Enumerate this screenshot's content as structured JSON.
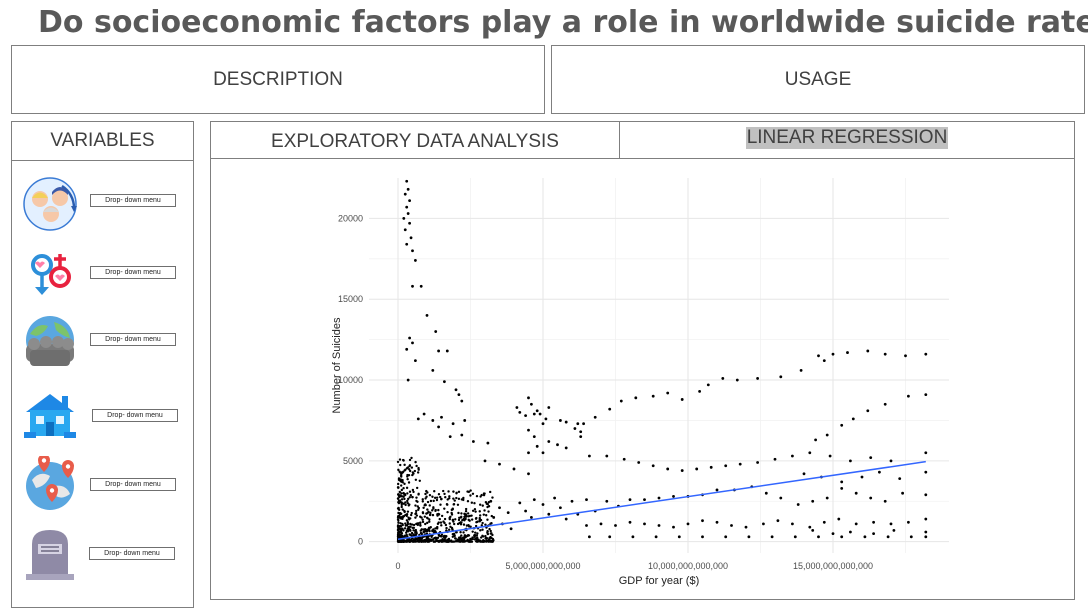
{
  "page": {
    "title": "Do socioeconomic factors play a role in worldwide suicide rates?"
  },
  "top_tabs": {
    "description": "DESCRIPTION",
    "usage": "USAGE"
  },
  "variables": {
    "header": "VARIABLES",
    "items": [
      {
        "icon": "age-groups-icon",
        "dropdown": "Drop- down menu"
      },
      {
        "icon": "gender-symbols-icon",
        "dropdown": "Drop- down menu"
      },
      {
        "icon": "world-population-icon",
        "dropdown": "Drop- down menu"
      },
      {
        "icon": "house-icon",
        "dropdown": "Drop- down menu"
      },
      {
        "icon": "globe-location-pins-icon",
        "dropdown": "Drop- down menu"
      },
      {
        "icon": "tombstone-icon",
        "dropdown": "Drop- down menu"
      }
    ]
  },
  "analysis_tabs": {
    "eda": "EXPLORATORY DATA ANALYSIS",
    "linear_regression": "LINEAR REGRESSION",
    "active": "linear_regression"
  },
  "chart_data": {
    "type": "scatter",
    "title": "",
    "xlabel": "GDP for year ($)",
    "ylabel": "Number of Suicides",
    "xlim": [
      -1000000000000,
      19000000000000
    ],
    "ylim": [
      -700,
      22500
    ],
    "x_ticks": [
      0,
      5000000000000,
      10000000000000,
      15000000000000
    ],
    "x_tick_labels": [
      "0",
      "5,000,000,000,000",
      "10,000,000,000,000",
      "15,000,000,000,000"
    ],
    "y_ticks": [
      0,
      5000,
      10000,
      15000,
      20000
    ],
    "y_tick_labels": [
      "0",
      "5000",
      "10000",
      "15000",
      "20000"
    ],
    "grid": true,
    "point_color": "#000000",
    "regression_line": {
      "color": "#3366ff",
      "x": [
        0,
        18200000000000
      ],
      "y": [
        150,
        4950
      ]
    },
    "points": [
      [
        300000000000,
        22300
      ],
      [
        350000000000,
        21800
      ],
      [
        250000000000,
        21500
      ],
      [
        400000000000,
        21100
      ],
      [
        300000000000,
        20700
      ],
      [
        350000000000,
        20300
      ],
      [
        200000000000,
        20000
      ],
      [
        400000000000,
        19700
      ],
      [
        250000000000,
        19300
      ],
      [
        450000000000,
        18800
      ],
      [
        300000000000,
        18400
      ],
      [
        500000000000,
        18000
      ],
      [
        600000000000,
        17400
      ],
      [
        500000000000,
        15800
      ],
      [
        800000000000,
        15800
      ],
      [
        1000000000000,
        14000
      ],
      [
        1300000000000,
        13000
      ],
      [
        400000000000,
        12600
      ],
      [
        500000000000,
        12300
      ],
      [
        300000000000,
        11900
      ],
      [
        1400000000000,
        11800
      ],
      [
        1700000000000,
        11800
      ],
      [
        600000000000,
        11200
      ],
      [
        1200000000000,
        10600
      ],
      [
        350000000000,
        10000
      ],
      [
        1600000000000,
        9900
      ],
      [
        2000000000000,
        9400
      ],
      [
        2100000000000,
        9100
      ],
      [
        2200000000000,
        8700
      ],
      [
        1500000000000,
        7700
      ],
      [
        1200000000000,
        7500
      ],
      [
        900000000000,
        7900
      ],
      [
        700000000000,
        7600
      ],
      [
        2300000000000,
        7500
      ],
      [
        1900000000000,
        7300
      ],
      [
        1400000000000,
        7100
      ],
      [
        2200000000000,
        6600
      ],
      [
        2600000000000,
        6200
      ],
      [
        3100000000000,
        6100
      ],
      [
        1800000000000,
        6500
      ],
      [
        4100000000000,
        8300
      ],
      [
        4200000000000,
        8000
      ],
      [
        4400000000000,
        7800
      ],
      [
        4500000000000,
        8900
      ],
      [
        4600000000000,
        8500
      ],
      [
        4700000000000,
        7900
      ],
      [
        4800000000000,
        8100
      ],
      [
        4900000000000,
        7900
      ],
      [
        5100000000000,
        7600
      ],
      [
        5200000000000,
        8300
      ],
      [
        5000000000000,
        7300
      ],
      [
        5600000000000,
        7500
      ],
      [
        5800000000000,
        7400
      ],
      [
        6200000000000,
        7300
      ],
      [
        6100000000000,
        7000
      ],
      [
        6300000000000,
        6800
      ],
      [
        6300000000000,
        6500
      ],
      [
        4500000000000,
        6900
      ],
      [
        4700000000000,
        6500
      ],
      [
        5200000000000,
        6200
      ],
      [
        5500000000000,
        6000
      ],
      [
        5800000000000,
        5800
      ],
      [
        4800000000000,
        5900
      ],
      [
        5000000000000,
        5500
      ],
      [
        4500000000000,
        5500
      ],
      [
        6400000000000,
        7300
      ],
      [
        6800000000000,
        7700
      ],
      [
        7300000000000,
        8200
      ],
      [
        7700000000000,
        8700
      ],
      [
        8200000000000,
        8900
      ],
      [
        8800000000000,
        9000
      ],
      [
        9300000000000,
        9200
      ],
      [
        9800000000000,
        8800
      ],
      [
        10400000000000,
        9300
      ],
      [
        10700000000000,
        9700
      ],
      [
        11200000000000,
        10100
      ],
      [
        11700000000000,
        10000
      ],
      [
        12400000000000,
        10100
      ],
      [
        13200000000000,
        10200
      ],
      [
        13900000000000,
        10600
      ],
      [
        14500000000000,
        11500
      ],
      [
        14700000000000,
        11200
      ],
      [
        15000000000000,
        11600
      ],
      [
        15500000000000,
        11700
      ],
      [
        16200000000000,
        11800
      ],
      [
        16800000000000,
        11600
      ],
      [
        17500000000000,
        11500
      ],
      [
        18200000000000,
        11600
      ],
      [
        14400000000000,
        6300
      ],
      [
        14800000000000,
        6600
      ],
      [
        15300000000000,
        7200
      ],
      [
        15700000000000,
        7600
      ],
      [
        16200000000000,
        8100
      ],
      [
        16800000000000,
        8500
      ],
      [
        17600000000000,
        9000
      ],
      [
        18200000000000,
        9100
      ],
      [
        6600000000000,
        5300
      ],
      [
        7200000000000,
        5300
      ],
      [
        7800000000000,
        5100
      ],
      [
        8300000000000,
        4900
      ],
      [
        8800000000000,
        4700
      ],
      [
        9300000000000,
        4500
      ],
      [
        9800000000000,
        4400
      ],
      [
        10300000000000,
        4500
      ],
      [
        10800000000000,
        4600
      ],
      [
        11300000000000,
        4700
      ],
      [
        11800000000000,
        4800
      ],
      [
        12400000000000,
        4900
      ],
      [
        13000000000000,
        5100
      ],
      [
        13600000000000,
        5300
      ],
      [
        14200000000000,
        5500
      ],
      [
        14900000000000,
        5300
      ],
      [
        15600000000000,
        5000
      ],
      [
        16300000000000,
        5200
      ],
      [
        17000000000000,
        5000
      ],
      [
        18200000000000,
        5500
      ],
      [
        3000000000000,
        5000
      ],
      [
        3500000000000,
        4800
      ],
      [
        4000000000000,
        4500
      ],
      [
        4500000000000,
        4200
      ],
      [
        3200000000000,
        2500
      ],
      [
        3500000000000,
        2100
      ],
      [
        3800000000000,
        1800
      ],
      [
        3300000000000,
        1500
      ],
      [
        3600000000000,
        1100
      ],
      [
        3900000000000,
        800
      ],
      [
        4200000000000,
        2400
      ],
      [
        4400000000000,
        1900
      ],
      [
        4600000000000,
        1500
      ],
      [
        4700000000000,
        2600
      ],
      [
        5000000000000,
        2300
      ],
      [
        5200000000000,
        1700
      ],
      [
        5400000000000,
        2700
      ],
      [
        5600000000000,
        2100
      ],
      [
        5800000000000,
        1400
      ],
      [
        6000000000000,
        2500
      ],
      [
        6200000000000,
        1700
      ],
      [
        6500000000000,
        2600
      ],
      [
        6800000000000,
        1900
      ],
      [
        7200000000000,
        2500
      ],
      [
        7600000000000,
        2200
      ],
      [
        8000000000000,
        2600
      ],
      [
        8500000000000,
        2600
      ],
      [
        9000000000000,
        2700
      ],
      [
        9500000000000,
        2800
      ],
      [
        10000000000000,
        2800
      ],
      [
        10500000000000,
        2900
      ],
      [
        11000000000000,
        3200
      ],
      [
        11600000000000,
        3200
      ],
      [
        12200000000000,
        3400
      ],
      [
        12700000000000,
        3000
      ],
      [
        13200000000000,
        2700
      ],
      [
        13800000000000,
        2300
      ],
      [
        14300000000000,
        2500
      ],
      [
        14800000000000,
        2700
      ],
      [
        15300000000000,
        3300
      ],
      [
        15800000000000,
        3000
      ],
      [
        16300000000000,
        2700
      ],
      [
        16800000000000,
        2500
      ],
      [
        17400000000000,
        3000
      ],
      [
        18200000000000,
        2900
      ],
      [
        6500000000000,
        1000
      ],
      [
        7000000000000,
        1100
      ],
      [
        7500000000000,
        1000
      ],
      [
        8000000000000,
        1200
      ],
      [
        8500000000000,
        1100
      ],
      [
        9000000000000,
        1000
      ],
      [
        9500000000000,
        900
      ],
      [
        10000000000000,
        1100
      ],
      [
        10500000000000,
        1300
      ],
      [
        11000000000000,
        1200
      ],
      [
        11500000000000,
        1000
      ],
      [
        12000000000000,
        900
      ],
      [
        12600000000000,
        1100
      ],
      [
        13100000000000,
        1300
      ],
      [
        13600000000000,
        1100
      ],
      [
        14200000000000,
        900
      ],
      [
        14700000000000,
        1200
      ],
      [
        15200000000000,
        1400
      ],
      [
        15800000000000,
        1100
      ],
      [
        16400000000000,
        1200
      ],
      [
        17000000000000,
        1100
      ],
      [
        17600000000000,
        1200
      ],
      [
        18200000000000,
        1400
      ],
      [
        6600000000000,
        300
      ],
      [
        7300000000000,
        300
      ],
      [
        8100000000000,
        300
      ],
      [
        8900000000000,
        300
      ],
      [
        9700000000000,
        300
      ],
      [
        10500000000000,
        300
      ],
      [
        11300000000000,
        300
      ],
      [
        12100000000000,
        300
      ],
      [
        12900000000000,
        300
      ],
      [
        13700000000000,
        300
      ],
      [
        14500000000000,
        300
      ],
      [
        15300000000000,
        300
      ],
      [
        16100000000000,
        300
      ],
      [
        16900000000000,
        300
      ],
      [
        17700000000000,
        300
      ],
      [
        18200000000000,
        300
      ],
      [
        14000000000000,
        4200
      ],
      [
        14600000000000,
        4000
      ],
      [
        15300000000000,
        3700
      ],
      [
        16000000000000,
        4000
      ],
      [
        16600000000000,
        4300
      ],
      [
        17300000000000,
        3900
      ],
      [
        18200000000000,
        4300
      ],
      [
        14300000000000,
        700
      ],
      [
        15000000000000,
        500
      ],
      [
        15600000000000,
        600
      ],
      [
        16400000000000,
        500
      ],
      [
        17100000000000,
        700
      ],
      [
        18200000000000,
        600
      ]
    ]
  }
}
